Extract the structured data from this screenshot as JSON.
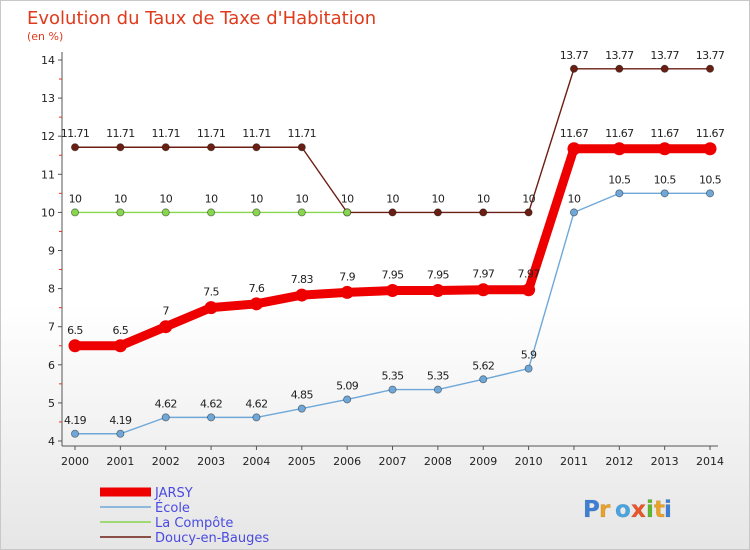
{
  "chart_data": {
    "type": "line",
    "title": "Evolution du Taux de Taxe d'Habitation",
    "subtitle": "(en %)",
    "xlabel": "",
    "ylabel": "",
    "x": [
      "2000",
      "2001",
      "2002",
      "2003",
      "2004",
      "2005",
      "2006",
      "2007",
      "2008",
      "2009",
      "2010",
      "2011",
      "2012",
      "2013",
      "2014"
    ],
    "ylim": [
      4,
      14
    ],
    "yticks": [
      "4",
      "5",
      "6",
      "7",
      "8",
      "9",
      "10",
      "11",
      "12",
      "13",
      "14"
    ],
    "grid": false,
    "legend_position": "bottom-left",
    "series": [
      {
        "name": "Doucy-en-Bauges",
        "color": "#6b1e12",
        "values": [
          11.71,
          11.71,
          11.71,
          11.71,
          11.71,
          11.71,
          10,
          10,
          10,
          10,
          10,
          13.77,
          13.77,
          13.77,
          13.77
        ],
        "labels": [
          "11.71",
          "11.71",
          "11.71",
          "11.71",
          "11.71",
          "11.71",
          "10",
          "10",
          "10",
          "10",
          "10",
          "13.77",
          "13.77",
          "13.77",
          "13.77"
        ]
      },
      {
        "name": "La Compôte",
        "color": "#88d64f",
        "values": [
          10,
          10,
          10,
          10,
          10,
          10,
          10,
          null,
          null,
          null,
          null,
          null,
          null,
          null,
          null
        ],
        "labels": [
          "10",
          "10",
          "10",
          "10",
          "10",
          "10",
          "",
          "",
          "",
          "",
          "",
          "",
          "",
          "",
          ""
        ]
      },
      {
        "name": "École",
        "color": "#6fa8d8",
        "values": [
          4.19,
          4.19,
          4.62,
          4.62,
          4.62,
          4.85,
          5.09,
          5.35,
          5.35,
          5.62,
          5.9,
          10,
          10.5,
          10.5,
          10.5
        ],
        "labels": [
          "4.19",
          "4.19",
          "4.62",
          "4.62",
          "4.62",
          "4.85",
          "5.09",
          "5.35",
          "5.35",
          "5.62",
          "5.9",
          "10",
          "10.5",
          "10.5",
          "10.5"
        ]
      },
      {
        "name": "JARSY",
        "color": "#ee0000",
        "values": [
          6.5,
          6.5,
          7,
          7.5,
          7.6,
          7.83,
          7.9,
          7.95,
          7.95,
          7.97,
          7.97,
          11.67,
          11.67,
          11.67,
          11.67
        ],
        "labels": [
          "6.5",
          "6.5",
          "7",
          "7.5",
          "7.6",
          "7.83",
          "7.9",
          "7.95",
          "7.95",
          "7.97",
          "7.97",
          "11.67",
          "11.67",
          "11.67",
          "11.67"
        ]
      }
    ],
    "legend_order": [
      "JARSY",
      "École",
      "La Compôte",
      "Doucy-en-Bauges"
    ]
  },
  "branding": {
    "logo_text": "Proxiti"
  }
}
